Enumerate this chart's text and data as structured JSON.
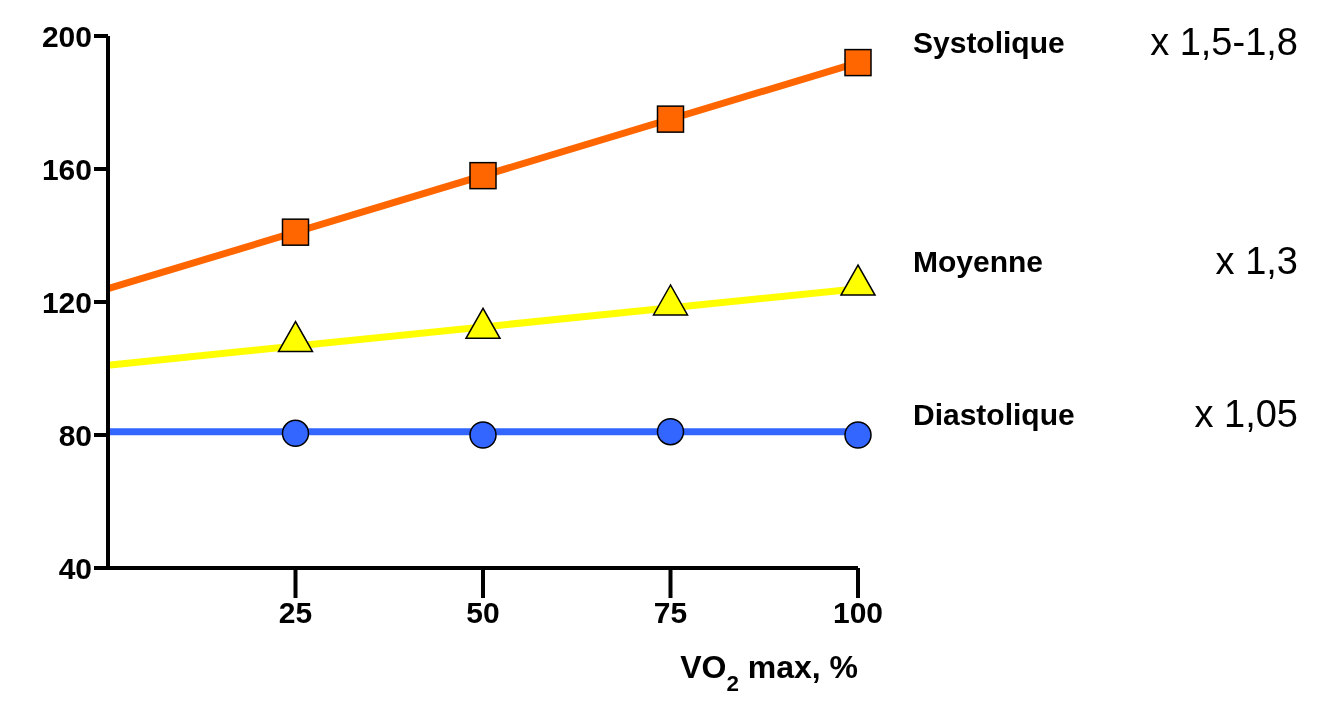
{
  "chart_data": {
    "type": "line",
    "xlabel": "VO$_{2}$ max, %",
    "xlim": [
      0,
      100
    ],
    "xticks": [
      25,
      50,
      75,
      100
    ],
    "ylim": [
      40,
      200
    ],
    "yticks": [
      40,
      80,
      120,
      160,
      200
    ],
    "grid": false,
    "legend": false,
    "line_style": "solid",
    "series": [
      {
        "type": "scatter",
        "name": "Systolique",
        "color": "#ff6600",
        "marker": "square",
        "x": [
          25,
          50,
          75,
          100
        ],
        "values": [
          141,
          158,
          175,
          192
        ]
      },
      {
        "type": "scatter",
        "name": "Moyenne",
        "color": "#ffff00",
        "marker": "triangle",
        "x": [
          25,
          50,
          75,
          100
        ],
        "values": [
          109,
          113,
          120,
          126
        ]
      },
      {
        "type": "scatter",
        "name": "Diastolique",
        "color": "#3366ff",
        "marker": "circle",
        "x": [
          25,
          50,
          75,
          100
        ],
        "values": [
          80.5,
          80,
          81,
          80
        ]
      },
      {
        "color": "#ff6600",
        "marker": "none",
        "x": [
          0,
          100
        ],
        "values": [
          124,
          192
        ]
      },
      {
        "color": "#ffff00",
        "marker": "none",
        "x": [
          0,
          100
        ],
        "values": [
          101,
          124
        ]
      },
      {
        "color": "#3366ff",
        "marker": "none",
        "x": [
          0,
          100
        ],
        "values": [
          81,
          81
        ]
      }
    ],
    "annotations": [
      "x 1,5-1,8",
      "x 1,3",
      "x 1,05"
    ]
  }
}
